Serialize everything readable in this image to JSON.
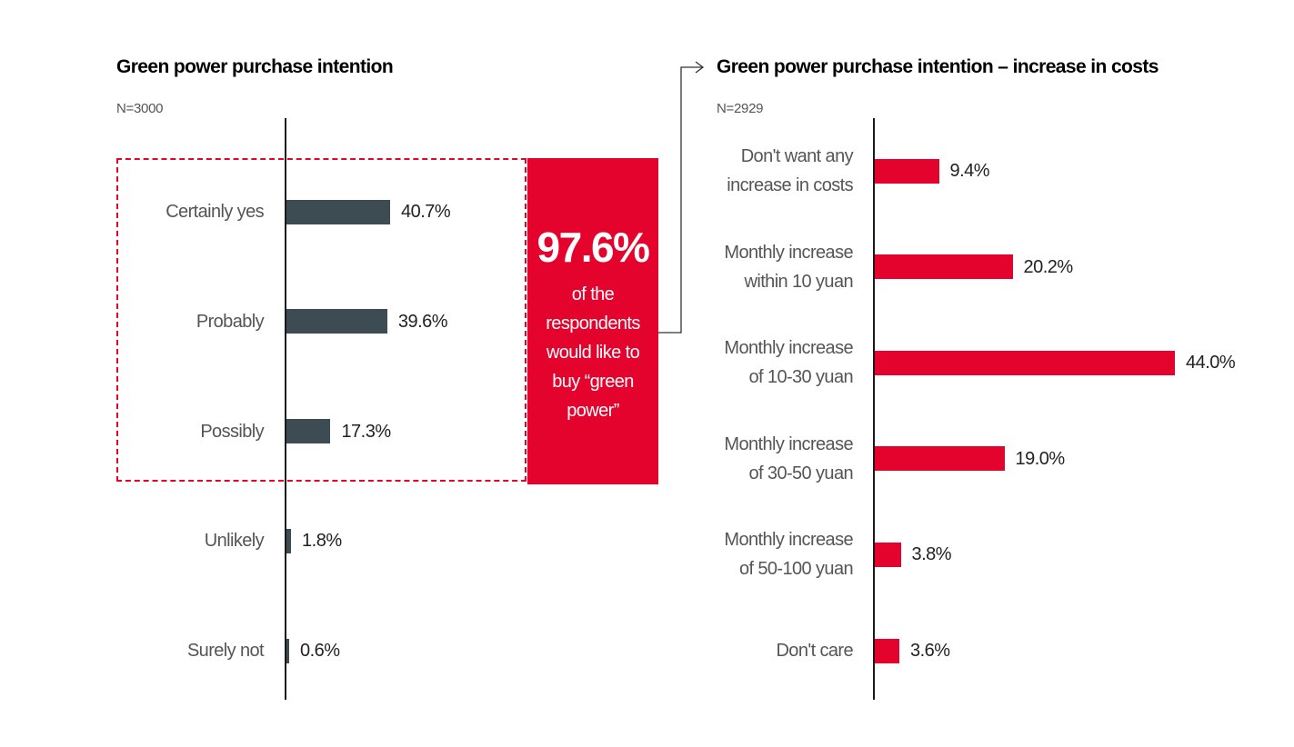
{
  "chart_data": [
    {
      "type": "bar",
      "orientation": "horizontal",
      "title": "Green power purchase intention",
      "subtitle": "N=3000",
      "categories": [
        "Certainly yes",
        "Probably",
        "Possibly",
        "Unlikely",
        "Surely not"
      ],
      "values": [
        40.7,
        39.6,
        17.3,
        1.8,
        0.6
      ],
      "value_labels": [
        "40.7%",
        "39.6%",
        "17.3%",
        "1.8%",
        "0.6%"
      ],
      "bar_color": "#3d4b53",
      "xlim": [
        0,
        50
      ]
    },
    {
      "type": "bar",
      "orientation": "horizontal",
      "title": "Green power purchase intention – increase in costs",
      "subtitle": "N=2929",
      "categories": [
        [
          "Don't want any",
          "increase in costs"
        ],
        [
          "Monthly increase",
          "within 10 yuan"
        ],
        [
          "Monthly increase",
          "of 10-30 yuan"
        ],
        [
          "Monthly increase",
          "of 30-50 yuan"
        ],
        [
          "Monthly increase",
          "of 50-100 yuan"
        ],
        [
          "Don't care"
        ]
      ],
      "values": [
        9.4,
        20.2,
        44.0,
        19.0,
        3.8,
        3.6
      ],
      "value_labels": [
        "9.4%",
        "20.2%",
        "44.0%",
        "19.0%",
        "3.8%",
        "3.6%"
      ],
      "bar_color": "#e4032d",
      "xlim": [
        0,
        44
      ]
    }
  ],
  "callout": {
    "value": "97.6%",
    "lines": [
      "of the",
      "respondents",
      "would like to",
      "buy “green",
      "power”"
    ],
    "color": "#e4032d"
  }
}
